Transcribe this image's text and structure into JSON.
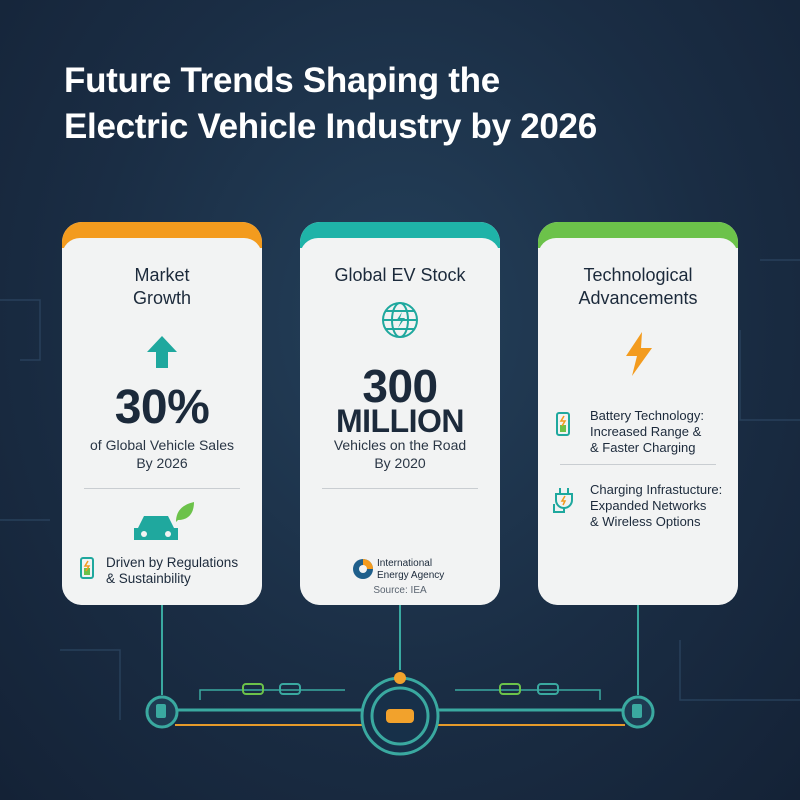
{
  "title_lines": [
    "Future Trends Shaping the",
    "Electric Vehicle Industry by 2026"
  ],
  "cards": [
    {
      "heading": "Market Growth",
      "stat_lines": [
        "30%"
      ],
      "stat_caption": "of Global Vehicle Sales",
      "stat_note": "By 2026",
      "footnote_lines": [
        "Driven by Regulations",
        "& Sustainbility"
      ]
    },
    {
      "heading": "Global EV Stock",
      "stat_lines": [
        "300",
        "MILLION"
      ],
      "stat_caption": "Vehicles on the Road",
      "stat_note": "By 2020",
      "source_org_lines": [
        "International",
        "Energy Agency"
      ],
      "source": "Source: IEA"
    },
    {
      "heading_lines": [
        "Technological",
        "Advancements"
      ],
      "items": [
        {
          "lines": [
            "Battery Technology:",
            "Increased Range &",
            "& Faster Charging"
          ]
        },
        {
          "lines": [
            "Charging Infrastucture:",
            "Expanded Networks",
            "& Wireless Options"
          ]
        }
      ]
    }
  ]
}
